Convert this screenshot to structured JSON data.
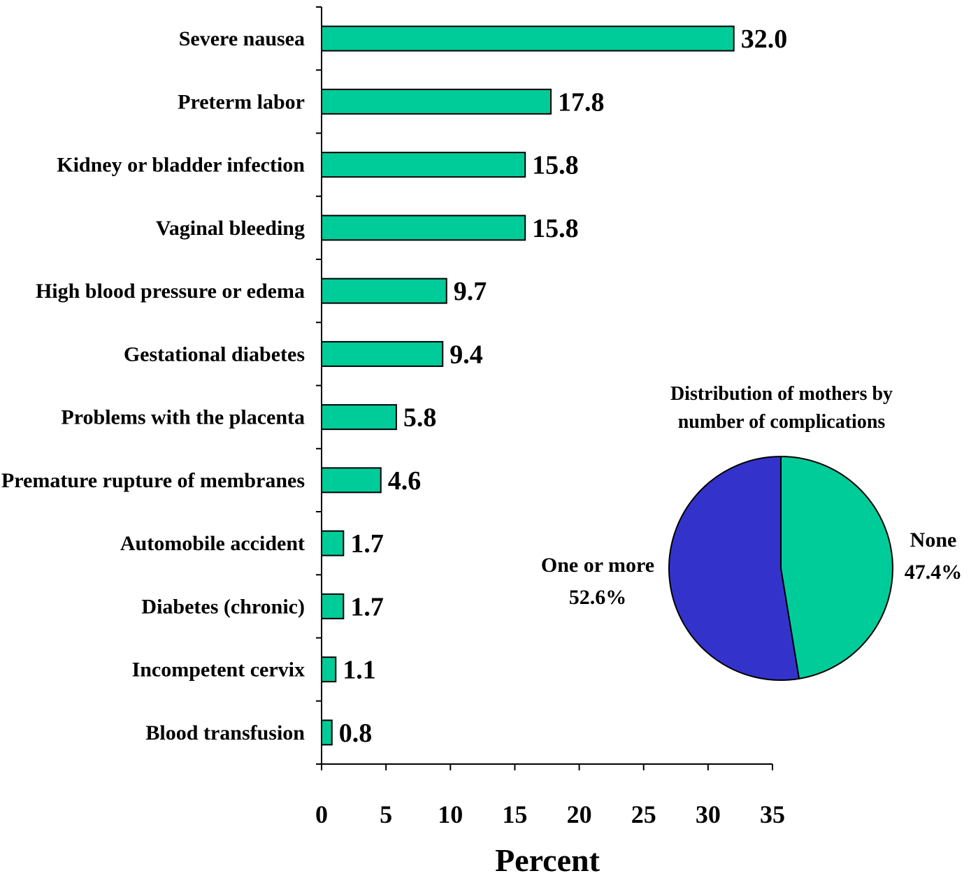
{
  "chart_data": [
    {
      "type": "bar",
      "orientation": "horizontal",
      "categories": [
        "Severe nausea",
        "Preterm labor",
        "Kidney or bladder infection",
        "Vaginal bleeding",
        "High blood pressure or edema",
        "Gestational diabetes",
        "Problems with the placenta",
        "Premature rupture of membranes",
        "Automobile accident",
        "Diabetes (chronic)",
        "Incompetent cervix",
        "Blood transfusion"
      ],
      "values": [
        32.0,
        17.8,
        15.8,
        15.8,
        9.7,
        9.4,
        5.8,
        4.6,
        1.7,
        1.7,
        1.1,
        0.8
      ],
      "value_labels": [
        "32.0",
        "17.8",
        "15.8",
        "15.8",
        "9.7",
        "9.4",
        "5.8",
        "4.6",
        "1.7",
        "1.7",
        "1.1",
        "0.8"
      ],
      "xlabel": "Percent",
      "xlim": [
        0,
        35
      ],
      "xticks": [
        "0",
        "5",
        "10",
        "15",
        "20",
        "25",
        "30",
        "35"
      ],
      "grid": false,
      "bar_color": "#00CC99"
    },
    {
      "type": "pie",
      "title_lines": [
        "Distribution of mothers by",
        "number of complications"
      ],
      "slices": [
        {
          "label": "None",
          "value_label": "47.4%",
          "value": 47.4,
          "color": "#00CC99"
        },
        {
          "label": "One or more",
          "value_label": "52.6%",
          "value": 52.6,
          "color": "#3333CC"
        }
      ]
    }
  ]
}
